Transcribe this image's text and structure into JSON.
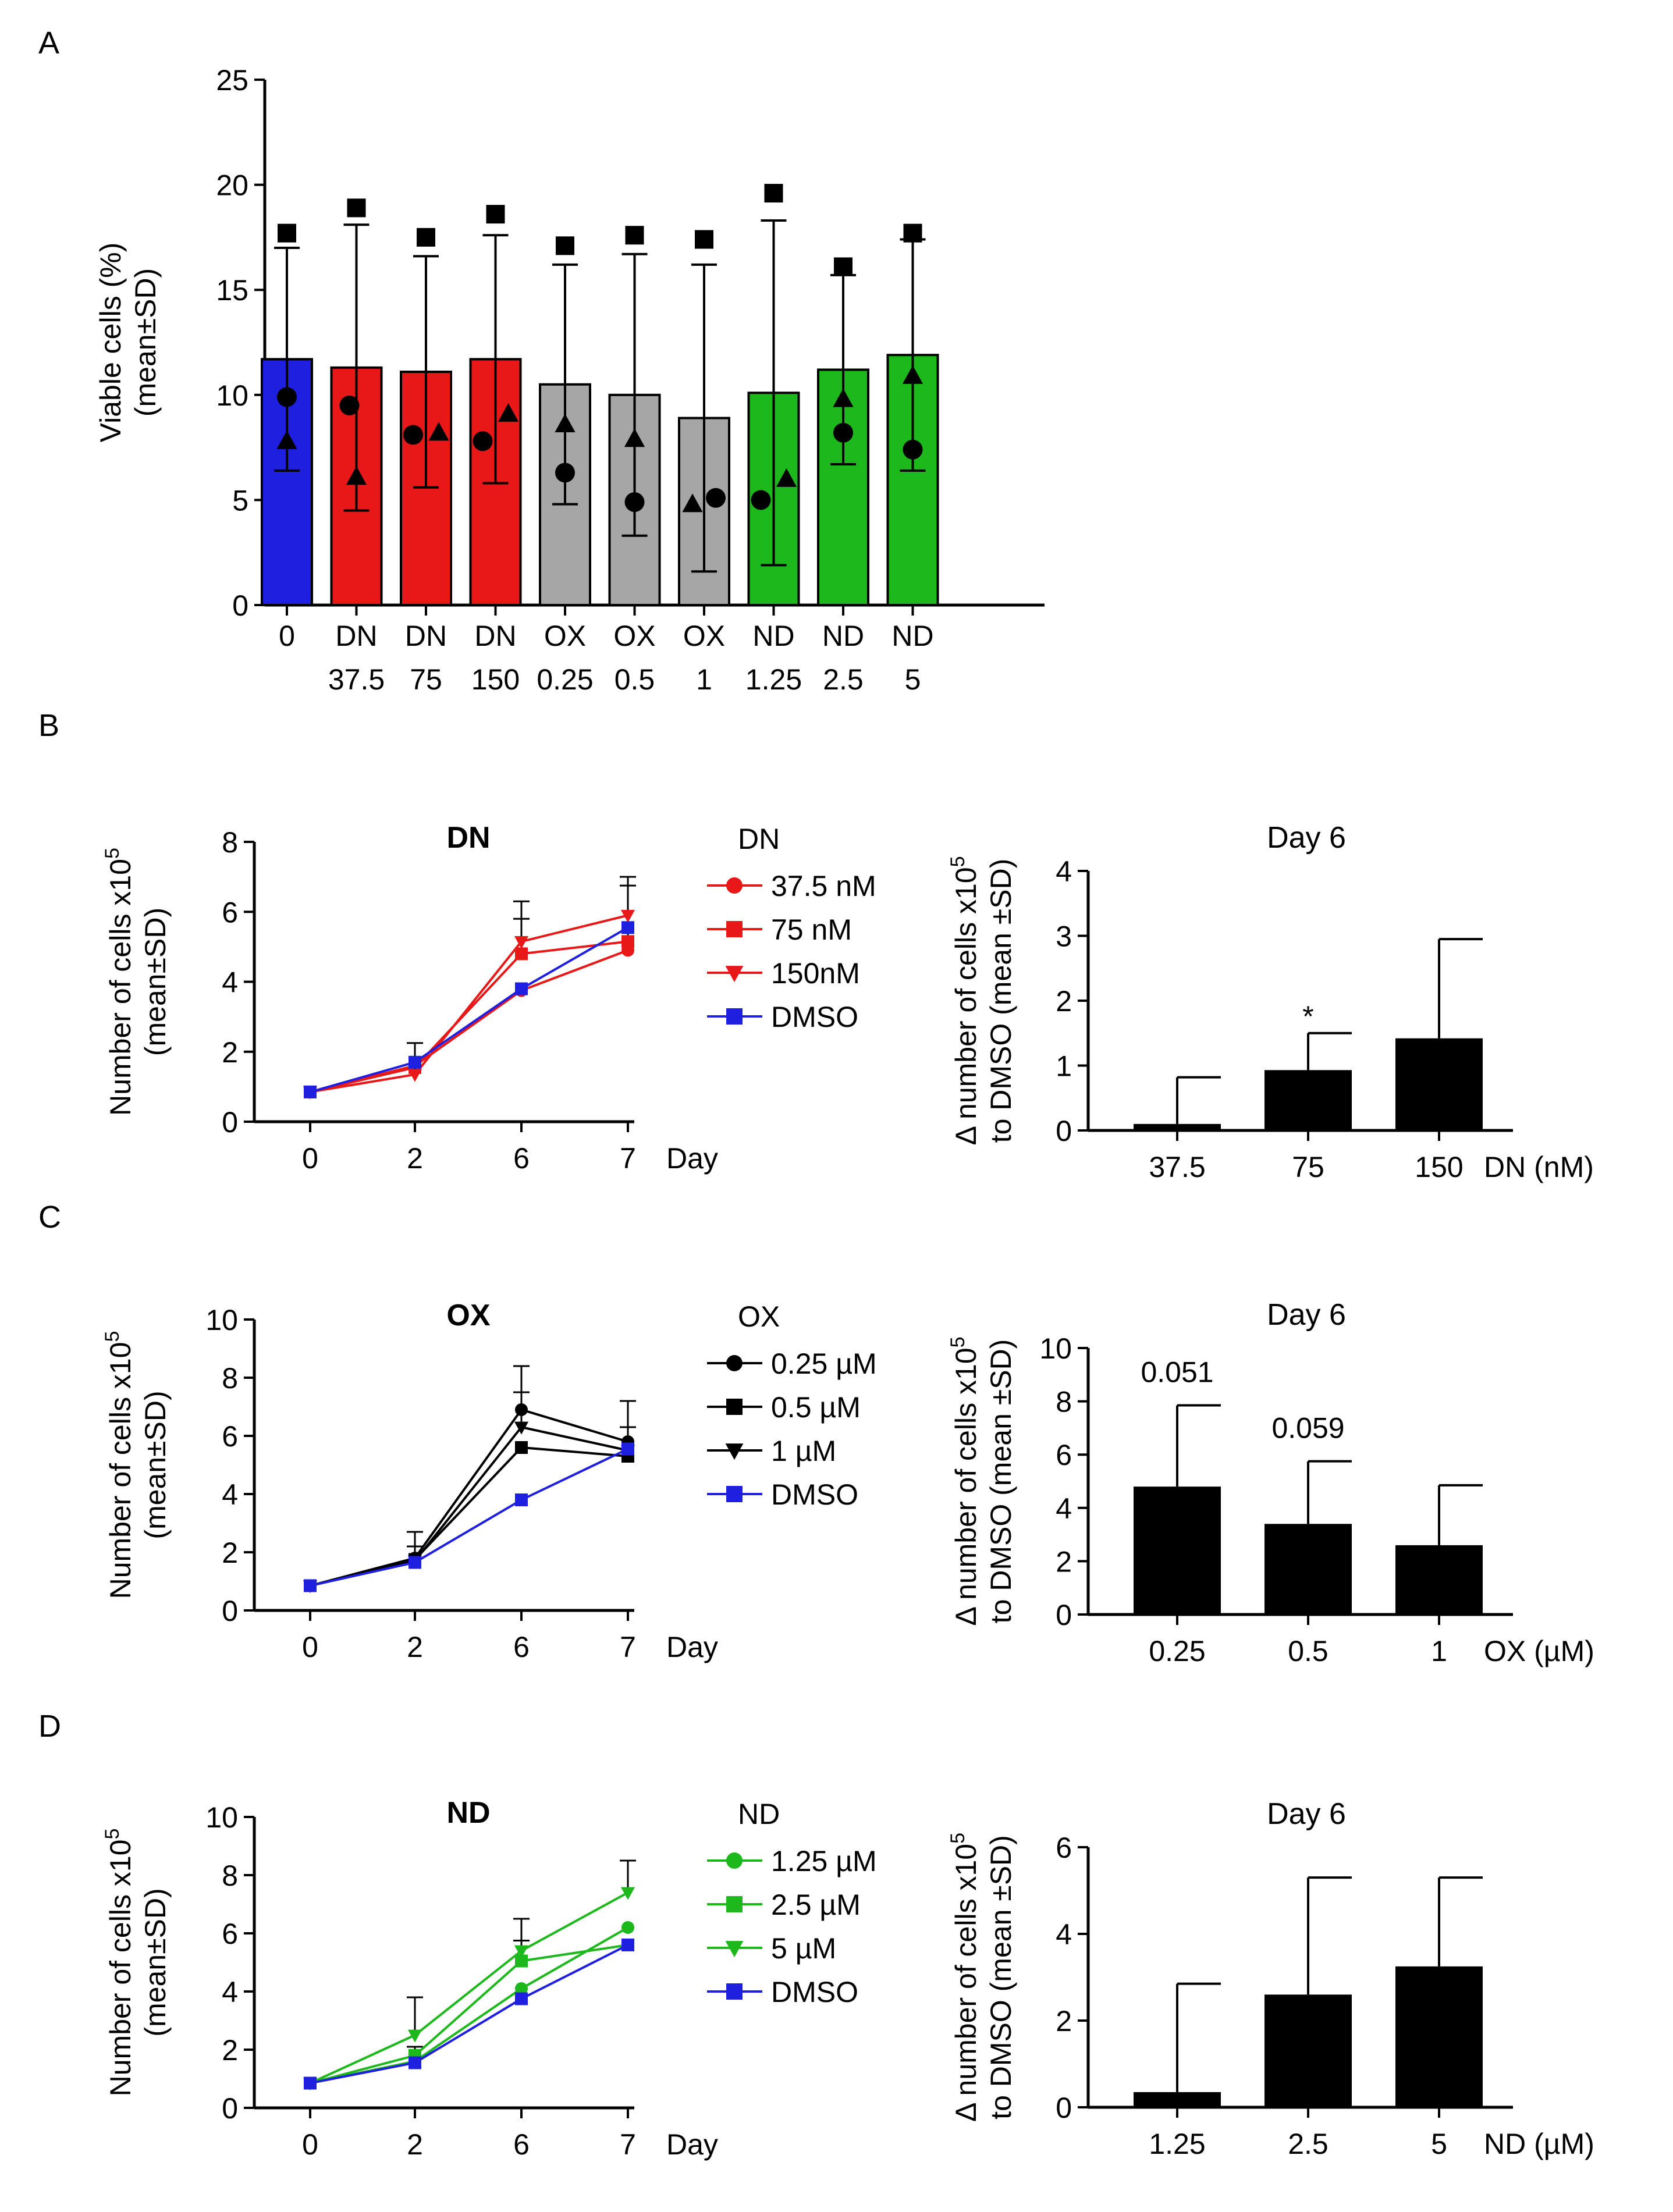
{
  "chart_data": [
    {
      "panel": "A",
      "type": "bar",
      "title": "",
      "xlabel": "",
      "ylabel": [
        "Viable cells (%)",
        "(mean±SD)"
      ],
      "ylim": [
        0,
        25
      ],
      "yticks": [
        0,
        5,
        10,
        15,
        20,
        25
      ],
      "categories": [
        [
          "0"
        ],
        [
          "DN",
          "37.5"
        ],
        [
          "DN",
          "75"
        ],
        [
          "DN",
          "150"
        ],
        [
          "OX",
          "0.25"
        ],
        [
          "OX",
          "0.5"
        ],
        [
          "OX",
          "1"
        ],
        [
          "ND",
          "1.25"
        ],
        [
          "ND",
          "2.5"
        ],
        [
          "ND",
          "5"
        ]
      ],
      "values": [
        11.7,
        11.3,
        11.1,
        11.7,
        10.5,
        10.0,
        8.9,
        10.1,
        11.2,
        11.9
      ],
      "sd": [
        5.3,
        6.8,
        5.5,
        5.9,
        5.7,
        6.7,
        7.3,
        8.2,
        4.5,
        5.5
      ],
      "colors": [
        "#1f1fe0",
        "#e81818",
        "#e81818",
        "#e81818",
        "#a6a6a6",
        "#a6a6a6",
        "#a6a6a6",
        "#1cb81c",
        "#1cb81c",
        "#1cb81c"
      ],
      "points": {
        "square": [
          17.7,
          18.9,
          17.5,
          18.6,
          17.1,
          17.6,
          17.4,
          19.6,
          16.1,
          17.7
        ],
        "circle": [
          9.9,
          9.5,
          8.1,
          7.8,
          6.3,
          4.9,
          5.1,
          5.0,
          8.2,
          7.4
        ],
        "triangle": [
          7.8,
          6.1,
          8.2,
          9.1,
          8.6,
          7.9,
          4.8,
          6.0,
          9.8,
          10.9
        ]
      }
    },
    {
      "panel": "B",
      "type": "line",
      "title": "DN",
      "xlabel": "Day",
      "ylabel": [
        "Number of cells x10",
        "5",
        "(mean±SD)"
      ],
      "x": [
        "0",
        "2",
        "6",
        "7"
      ],
      "ylim": [
        0,
        8
      ],
      "yticks": [
        0,
        2,
        4,
        6,
        8
      ],
      "legend_title": "DN",
      "series": [
        {
          "name": "37.5 nM",
          "values": [
            0.85,
            1.6,
            3.75,
            4.9
          ],
          "err": [
            0,
            0,
            0,
            0
          ],
          "color": "#e81818",
          "marker": "circle"
        },
        {
          "name": "75 nM",
          "values": [
            0.85,
            1.55,
            4.8,
            5.15
          ],
          "err": [
            0,
            0,
            1.0,
            1.6
          ],
          "color": "#e81818",
          "marker": "square"
        },
        {
          "name": "150nM",
          "values": [
            0.85,
            1.35,
            5.15,
            5.9
          ],
          "err": [
            0,
            0.9,
            1.15,
            1.1
          ],
          "color": "#e81818",
          "marker": "triangle-down"
        },
        {
          "name": "DMSO",
          "values": [
            0.85,
            1.7,
            3.8,
            5.55
          ],
          "err": [
            0,
            0,
            0,
            0
          ],
          "color": "#1f1fe0",
          "marker": "square"
        }
      ]
    },
    {
      "panel": "B",
      "type": "bar",
      "title": "Day 6",
      "xlabel": "DN (nM)",
      "ylabel": [
        "Δ number of cells x10",
        "5",
        "to DMSO (mean ±SD)"
      ],
      "categories": [
        "37.5",
        "75",
        "150"
      ],
      "values": [
        0.1,
        0.93,
        1.42
      ],
      "err": [
        0.72,
        0.57,
        1.53
      ],
      "ylim": [
        0,
        4
      ],
      "yticks": [
        0,
        1,
        2,
        3,
        4
      ],
      "annotations": [
        "",
        "*",
        ""
      ]
    },
    {
      "panel": "C",
      "type": "line",
      "title": "OX",
      "xlabel": "Day",
      "ylabel": [
        "Number of cells x10",
        "5",
        "(mean±SD)"
      ],
      "x": [
        "0",
        "2",
        "6",
        "7"
      ],
      "ylim": [
        0,
        10
      ],
      "yticks": [
        0,
        2,
        4,
        6,
        8,
        10
      ],
      "legend_title": "OX",
      "series": [
        {
          "name": "0.25 µM",
          "values": [
            0.85,
            1.8,
            6.9,
            5.8
          ],
          "err": [
            0,
            0.9,
            1.5,
            1.4
          ],
          "color": "#000000",
          "marker": "circle"
        },
        {
          "name": "0.5 µM",
          "values": [
            0.85,
            1.75,
            5.6,
            5.3
          ],
          "err": [
            0,
            0,
            0,
            0
          ],
          "color": "#000000",
          "marker": "square"
        },
        {
          "name": "1 µM",
          "values": [
            0.85,
            1.7,
            6.3,
            5.5
          ],
          "err": [
            0,
            0.5,
            1.2,
            0.8
          ],
          "color": "#000000",
          "marker": "triangle-down"
        },
        {
          "name": "DMSO",
          "values": [
            0.85,
            1.65,
            3.8,
            5.55
          ],
          "err": [
            0,
            0,
            0,
            0
          ],
          "color": "#1f1fe0",
          "marker": "square"
        }
      ]
    },
    {
      "panel": "C",
      "type": "bar",
      "title": "Day 6",
      "xlabel": "OX (µM)",
      "ylabel": [
        "Δ number of cells x10",
        "5",
        "to DMSO (mean ±SD)"
      ],
      "categories": [
        "0.25",
        "0.5",
        "1"
      ],
      "values": [
        4.8,
        3.4,
        2.6
      ],
      "err": [
        3.05,
        2.35,
        2.25
      ],
      "ylim": [
        0,
        10
      ],
      "yticks": [
        0,
        2,
        4,
        6,
        8,
        10
      ],
      "annotations": [
        "0.051",
        "0.059",
        ""
      ]
    },
    {
      "panel": "D",
      "type": "line",
      "title": "ND",
      "xlabel": "Day",
      "ylabel": [
        "Number of cells x10",
        "5",
        "(mean±SD)"
      ],
      "x": [
        "0",
        "2",
        "6",
        "7"
      ],
      "ylim": [
        0,
        10
      ],
      "yticks": [
        0,
        2,
        4,
        6,
        8,
        10
      ],
      "legend_title": "ND",
      "series": [
        {
          "name": "1.25 µM",
          "values": [
            0.85,
            1.6,
            4.1,
            6.2
          ],
          "err": [
            0,
            0,
            0,
            0
          ],
          "color": "#1cb81c",
          "marker": "circle"
        },
        {
          "name": "2.5 µM",
          "values": [
            0.85,
            1.8,
            5.05,
            5.6
          ],
          "err": [
            0,
            0.3,
            0.7,
            0
          ],
          "color": "#1cb81c",
          "marker": "square"
        },
        {
          "name": "5 µM",
          "values": [
            0.85,
            2.5,
            5.4,
            7.4
          ],
          "err": [
            0,
            1.3,
            1.1,
            1.1
          ],
          "color": "#1cb81c",
          "marker": "triangle-down"
        },
        {
          "name": "DMSO",
          "values": [
            0.85,
            1.55,
            3.75,
            5.6
          ],
          "err": [
            0,
            0,
            0,
            0
          ],
          "color": "#1f1fe0",
          "marker": "square"
        }
      ]
    },
    {
      "panel": "D",
      "type": "bar",
      "title": "Day 6",
      "xlabel": "ND (µM)",
      "ylabel": [
        "Δ number of cells x10",
        "5",
        "to DMSO (mean ±SD)"
      ],
      "categories": [
        "1.25",
        "2.5",
        "5"
      ],
      "values": [
        0.35,
        2.6,
        3.25
      ],
      "err": [
        2.5,
        2.7,
        2.05
      ],
      "ylim": [
        0,
        6
      ],
      "yticks": [
        0,
        2,
        4,
        6
      ],
      "annotations": [
        "",
        "",
        ""
      ]
    }
  ]
}
